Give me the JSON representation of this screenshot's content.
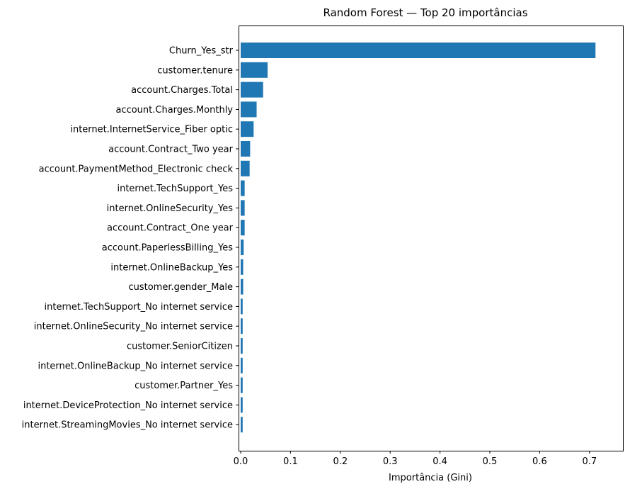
{
  "chart_data": {
    "type": "bar",
    "orientation": "horizontal",
    "title": "Random Forest — Top 20 importâncias",
    "xlabel": "Importância (Gini)",
    "ylabel": "",
    "xlim": [
      0,
      0.75
    ],
    "xticks": [
      "0.0",
      "0.1",
      "0.2",
      "0.3",
      "0.4",
      "0.5",
      "0.6",
      "0.7"
    ],
    "grid": false,
    "bar_color": "#1f77b4",
    "categories": [
      "Churn_Yes_str",
      "customer.tenure",
      "account.Charges.Total",
      "account.Charges.Monthly",
      "internet.InternetService_Fiber optic",
      "account.Contract_Two year",
      "account.PaymentMethod_Electronic check",
      "internet.TechSupport_Yes",
      "internet.OnlineSecurity_Yes",
      "account.Contract_One year",
      "account.PaperlessBilling_Yes",
      "internet.OnlineBackup_Yes",
      "customer.gender_Male",
      "internet.TechSupport_No internet service",
      "internet.OnlineSecurity_No internet service",
      "customer.SeniorCitizen",
      "internet.OnlineBackup_No internet service",
      "customer.Partner_Yes",
      "internet.DeviceProtection_No internet service",
      "internet.StreamingMovies_No internet service"
    ],
    "values": [
      0.712,
      0.054,
      0.045,
      0.032,
      0.026,
      0.019,
      0.018,
      0.008,
      0.008,
      0.008,
      0.006,
      0.005,
      0.005,
      0.004,
      0.004,
      0.004,
      0.004,
      0.004,
      0.004,
      0.004
    ]
  }
}
